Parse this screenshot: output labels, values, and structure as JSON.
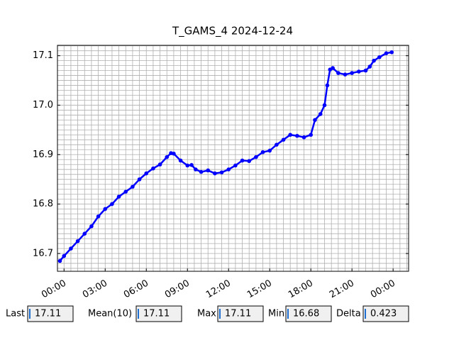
{
  "chart_data": {
    "type": "line",
    "title": "T_GAMS_4 2024-12-24",
    "x": [
      -0.3,
      0,
      0.5,
      1,
      1.5,
      2,
      2.5,
      3,
      3.5,
      4,
      4.5,
      5,
      5.5,
      6,
      6.5,
      7,
      7.5,
      7.8,
      8,
      8.5,
      9,
      9.3,
      9.6,
      10,
      10.5,
      11,
      11.5,
      12,
      12.5,
      13,
      13.5,
      14,
      14.5,
      15,
      15.5,
      16,
      16.5,
      17,
      17.5,
      18,
      18.3,
      18.7,
      19,
      19.2,
      19.4,
      19.6,
      20,
      20.5,
      21,
      21.5,
      22,
      22.3,
      22.6,
      23,
      23.5,
      23.9
    ],
    "series": [
      {
        "color": "#0000ff",
        "values": [
          16.685,
          16.695,
          16.71,
          16.725,
          16.74,
          16.755,
          16.775,
          16.79,
          16.8,
          16.815,
          16.825,
          16.835,
          16.85,
          16.862,
          16.872,
          16.88,
          16.895,
          16.903,
          16.902,
          16.888,
          16.878,
          16.879,
          16.87,
          16.865,
          16.868,
          16.862,
          16.864,
          16.87,
          16.878,
          16.888,
          16.887,
          16.895,
          16.905,
          16.908,
          16.92,
          16.93,
          16.94,
          16.938,
          16.935,
          16.94,
          16.97,
          16.982,
          17.0,
          17.04,
          17.072,
          17.075,
          17.065,
          17.062,
          17.065,
          17.068,
          17.07,
          17.078,
          17.09,
          17.097,
          17.105,
          17.107
        ]
      }
    ],
    "xlim": [
      -0.48,
      25.13
    ],
    "ylim": [
      16.664,
      17.121
    ],
    "xticks": [
      {
        "value": 0,
        "label": "00:00"
      },
      {
        "value": 3,
        "label": "03:00"
      },
      {
        "value": 6,
        "label": "06:00"
      },
      {
        "value": 9,
        "label": "09:00"
      },
      {
        "value": 12,
        "label": "12:00"
      },
      {
        "value": 15,
        "label": "15:00"
      },
      {
        "value": 18,
        "label": "18:00"
      },
      {
        "value": 21,
        "label": "21:00"
      },
      {
        "value": 24,
        "label": "00:00"
      }
    ],
    "yticks": [
      16.7,
      16.8,
      {
        "value": 16.9,
        "label": "16.9"
      },
      {
        "value": 17.0,
        "label": "17.0"
      },
      17.1
    ],
    "xminorticks": [
      0,
      0.5,
      1,
      1.5,
      2,
      2.5,
      3,
      3.5,
      4,
      4.5,
      5,
      5.5,
      6,
      6.5,
      7,
      7.5,
      8,
      8.5,
      9,
      9.5,
      10,
      10.5,
      11,
      11.5,
      12,
      12.5,
      13,
      13.5,
      14,
      14.5,
      15,
      15.5,
      16,
      16.5,
      17,
      17.5,
      18,
      18.5,
      19,
      19.5,
      20,
      20.5,
      21,
      21.5,
      22,
      22.5,
      23,
      23.5,
      24,
      24.5,
      25
    ],
    "yminorticks": [
      16.67,
      16.68,
      16.69,
      16.7,
      16.71,
      16.72,
      16.73,
      16.74,
      16.75,
      16.76,
      16.77,
      16.78,
      16.79,
      16.8,
      16.81,
      16.82,
      16.83,
      16.84,
      16.85,
      16.86,
      16.87,
      16.88,
      16.89,
      16.9,
      16.91,
      16.92,
      16.93,
      16.94,
      16.95,
      16.96,
      16.97,
      16.98,
      16.99,
      17.0,
      17.01,
      17.02,
      17.03,
      17.04,
      17.05,
      17.06,
      17.07,
      17.08,
      17.09,
      17.1,
      17.11,
      17.12
    ],
    "grid": true
  },
  "fields": [
    {
      "label": "Last",
      "value": "17.11"
    },
    {
      "label": "Mean(10)",
      "value": "17.11"
    },
    {
      "label": "Max",
      "value": "17.11"
    },
    {
      "label": "Min",
      "value": "16.68"
    },
    {
      "label": "Delta",
      "value": "0.423"
    }
  ]
}
